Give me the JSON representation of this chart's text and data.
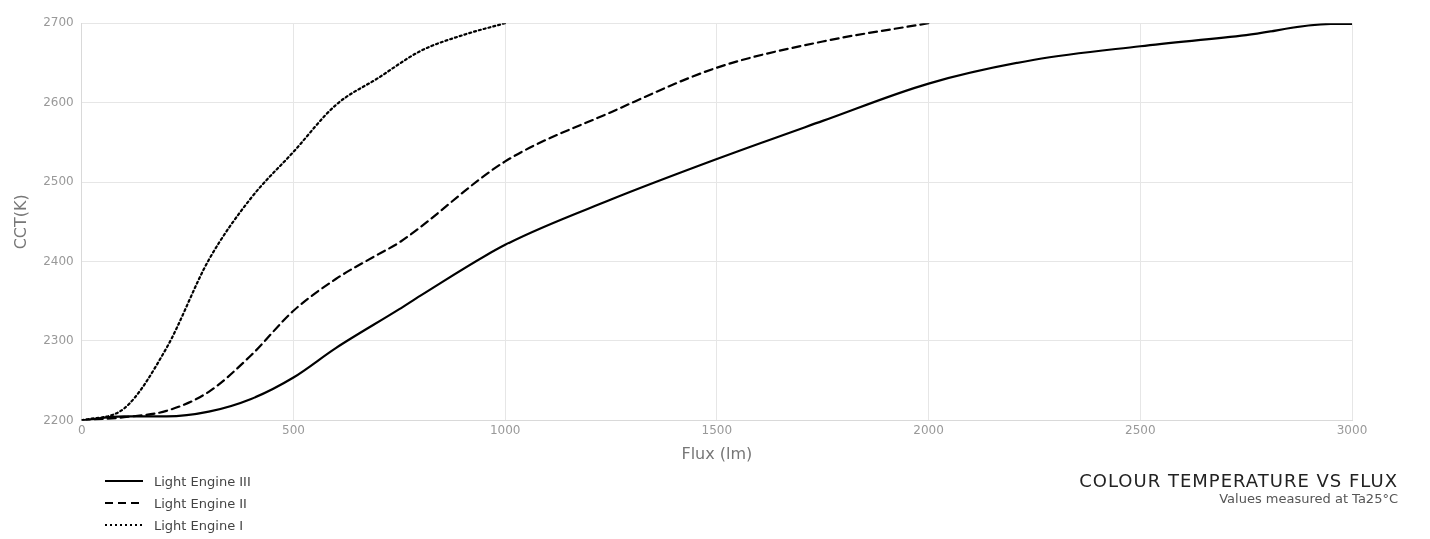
{
  "chart_data": {
    "type": "line",
    "title": "COLOUR TEMPERATURE VS FLUX",
    "subtitle": "Values measured at Ta25°C",
    "xlabel": "Flux (lm)",
    "ylabel": "CCT(K)",
    "xlim": [
      0,
      3000
    ],
    "xticks": [
      0,
      500,
      1000,
      1500,
      2000,
      2500,
      3000
    ],
    "ylim": [
      2200,
      2700
    ],
    "yticks": [
      2200,
      2300,
      2400,
      2500,
      2600,
      2700
    ],
    "grid": true,
    "legend": "bottom left",
    "marker": "none",
    "series": [
      {
        "name": "Light Engine III",
        "color": "#000000",
        "line_style": "solid",
        "x": [
          0,
          100,
          200,
          300,
          400,
          500,
          600,
          750,
          800,
          1000,
          1250,
          1500,
          1750,
          2000,
          2250,
          2500,
          2750,
          2950,
          3000
        ],
        "values": [
          2200,
          2205,
          2205,
          2211,
          2227,
          2254,
          2291,
          2340,
          2357,
          2421,
          2478,
          2529,
          2577,
          2624,
          2654,
          2671,
          2685,
          2699,
          2699
        ]
      },
      {
        "name": "Light Engine II",
        "color": "#000000",
        "line_style": "dashed",
        "x": [
          0,
          100,
          200,
          300,
          400,
          500,
          600,
          700,
          750,
          1000,
          1250,
          1500,
          1750,
          2000
        ],
        "values": [
          2200,
          2204,
          2212,
          2236,
          2282,
          2338,
          2378,
          2409,
          2424,
          2526,
          2588,
          2644,
          2677,
          2700
        ]
      },
      {
        "name": "Light Engine I",
        "color": "#000000",
        "line_style": "dotted",
        "x": [
          0,
          100,
          200,
          300,
          400,
          500,
          600,
          700,
          800,
          900,
          1000
        ],
        "values": [
          2200,
          2215,
          2291,
          2402,
          2480,
          2538,
          2597,
          2631,
          2665,
          2685,
          2700
        ]
      }
    ]
  }
}
